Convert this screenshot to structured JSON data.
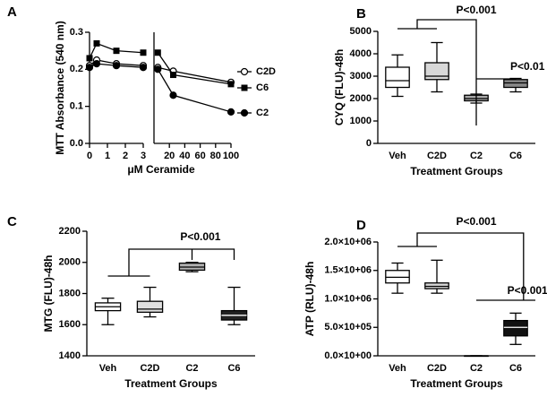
{
  "chart_data": [
    {
      "type": "line",
      "panel": "A",
      "ylabel": "MTT Absorbance (540 nm)",
      "xlabel": "μM Ceramide",
      "xlim": [
        0,
        3
      ],
      "xticks": [
        0,
        1,
        2,
        3
      ],
      "x2lim": [
        0,
        100
      ],
      "x2ticks": [
        20,
        40,
        60,
        80,
        100
      ],
      "ylim": [
        0,
        0.3
      ],
      "yticks": [
        {
          "value": 0,
          "label": "0.0"
        },
        0.1,
        0.2,
        0.3
      ],
      "series": [
        {
          "name": "C2D",
          "color": "#000000",
          "marker": "open-circle",
          "x": [
            0,
            0.4,
            1.5,
            3,
            5,
            25,
            100
          ],
          "values": [
            0.21,
            0.225,
            0.215,
            0.21,
            0.205,
            0.195,
            0.165
          ]
        },
        {
          "name": "C6",
          "color": "#000000",
          "marker": "square",
          "x": [
            0,
            0.4,
            1.5,
            3,
            5,
            25,
            100
          ],
          "values": [
            0.23,
            0.27,
            0.25,
            0.245,
            0.245,
            0.185,
            0.16
          ]
        },
        {
          "name": "C2",
          "color": "#000000",
          "marker": "circle",
          "x": [
            0,
            0.4,
            1.5,
            3,
            5,
            25,
            100
          ],
          "values": [
            0.205,
            0.215,
            0.21,
            0.205,
            0.2,
            0.13,
            0.085
          ]
        }
      ]
    },
    {
      "type": "box",
      "panel": "B",
      "ylabel": "CYQ (FLU)-48h",
      "xlabel": "Treatment Groups",
      "categories": [
        "Veh",
        "C2D",
        "C2",
        "C6"
      ],
      "colors": [
        "#ffffff",
        "#d8d8d8",
        "#a8a8a8",
        "#888888"
      ],
      "ylim": [
        0,
        5000
      ],
      "yticks": [
        0,
        1000,
        2000,
        3000,
        4000,
        5000
      ],
      "boxes": {
        "min": [
          2100,
          2300,
          1800,
          2300
        ],
        "q1": [
          2500,
          2850,
          1900,
          2500
        ],
        "median": [
          2800,
          3000,
          2000,
          2700
        ],
        "q3": [
          3400,
          3600,
          2150,
          2850
        ],
        "max": [
          3950,
          4500,
          2200,
          2900
        ]
      },
      "annotations": [
        "P<0.001",
        "P<0.01"
      ]
    },
    {
      "type": "box",
      "panel": "C",
      "ylabel": "MTG (FLU)-48h",
      "xlabel": "Treatment Groups",
      "categories": [
        "Veh",
        "C2D",
        "C2",
        "C6"
      ],
      "colors": [
        "#ffffff",
        "#e0e0e0",
        "#b0b0b0",
        "#222222"
      ],
      "ylim": [
        1400,
        2200
      ],
      "yticks": [
        1400,
        1600,
        1800,
        2000,
        2200
      ],
      "boxes": {
        "min": [
          1600,
          1650,
          1940,
          1600
        ],
        "q1": [
          1690,
          1680,
          1950,
          1630
        ],
        "median": [
          1715,
          1700,
          1970,
          1660
        ],
        "q3": [
          1740,
          1750,
          1995,
          1690
        ],
        "max": [
          1770,
          1840,
          2000,
          1840
        ]
      },
      "annotations": [
        "P<0.001"
      ]
    },
    {
      "type": "box",
      "panel": "D",
      "ylabel": "ATP (RLU)-48h",
      "xlabel": "Treatment Groups",
      "categories": [
        "Veh",
        "C2D",
        "C2",
        "C6"
      ],
      "colors": [
        "#ffffff",
        "#d8d8d8",
        "#a8a8a8",
        "#111111"
      ],
      "ylim": [
        0,
        2000000
      ],
      "yticks": [
        {
          "value": 0,
          "label": "0.0×10+00"
        },
        {
          "value": 500000,
          "label": "5.0×10+05"
        },
        {
          "value": 1000000,
          "label": "1.0×10+06"
        },
        {
          "value": 1500000,
          "label": "1.5×10+06"
        },
        {
          "value": 2000000,
          "label": "2.0×10+06"
        }
      ],
      "boxes": {
        "min": [
          1100000,
          1100000,
          0,
          200000
        ],
        "q1": [
          1280000,
          1180000,
          0,
          350000
        ],
        "median": [
          1380000,
          1220000,
          0,
          500000
        ],
        "q3": [
          1500000,
          1280000,
          0,
          620000
        ],
        "max": [
          1630000,
          1680000,
          0,
          750000
        ]
      },
      "annotations": [
        "P<0.001",
        "P<0.001"
      ]
    }
  ]
}
